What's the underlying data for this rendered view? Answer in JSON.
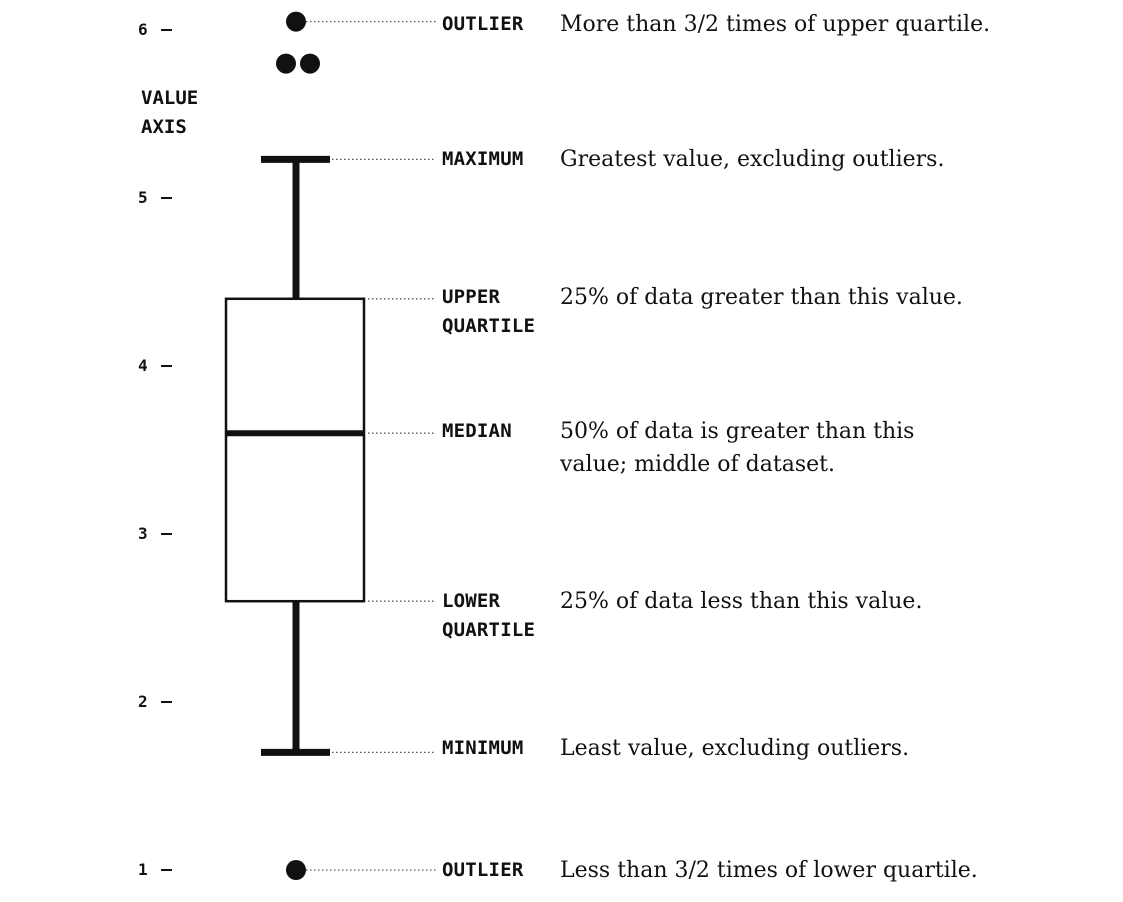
{
  "axis": {
    "title_line1": "VALUE",
    "title_line2": "AXIS",
    "ticks": [
      "1",
      "2",
      "3",
      "4",
      "5",
      "6"
    ]
  },
  "boxplot": {
    "minimum": 1.7,
    "lower_quartile": 2.6,
    "median": 3.6,
    "upper_quartile": 4.4,
    "maximum": 5.23,
    "outliers_high": [
      6.05,
      5.8,
      5.8
    ],
    "outliers_low": [
      1.0
    ]
  },
  "annotations": {
    "outlier_high": {
      "term": "OUTLIER",
      "desc": "More than 3/2 times of upper quartile."
    },
    "maximum": {
      "term": "MAXIMUM",
      "desc": "Greatest value, excluding outliers."
    },
    "upper_quartile": {
      "term_line1": "UPPER",
      "term_line2": "QUARTILE",
      "desc": "25% of data greater than this value."
    },
    "median": {
      "term": "MEDIAN",
      "desc_line1": "50% of data is greater than this",
      "desc_line2": "value;  middle of dataset."
    },
    "lower_quartile": {
      "term_line1": "LOWER",
      "term_line2": "QUARTILE",
      "desc": "25% of data less than this value."
    },
    "minimum": {
      "term": "MINIMUM",
      "desc": "Least value, excluding outliers."
    },
    "outlier_low": {
      "term": "OUTLIER",
      "desc": "Less than 3/2 times of lower quartile."
    }
  },
  "colors": {
    "ink": "#111111",
    "background": "#ffffff"
  }
}
